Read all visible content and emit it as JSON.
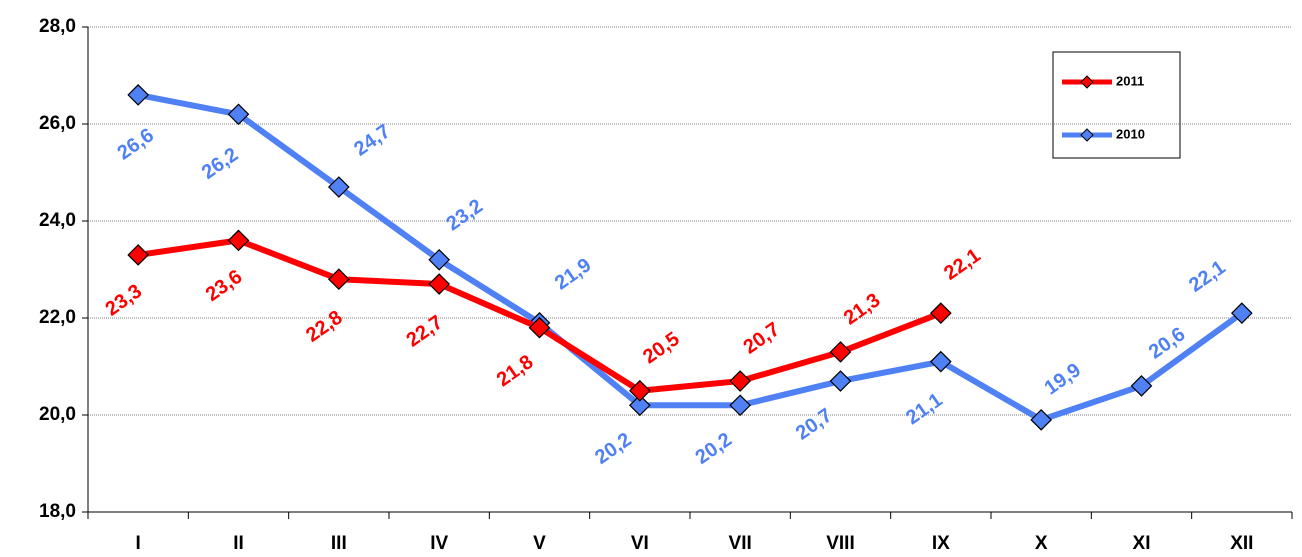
{
  "chart_data": {
    "type": "line",
    "categories": [
      "I",
      "II",
      "III",
      "IV",
      "V",
      "VI",
      "VII",
      "VIII",
      "IX",
      "X",
      "XI",
      "XII"
    ],
    "series": [
      {
        "name": "2011",
        "color": "#ff0000",
        "values": [
          23.3,
          23.6,
          22.8,
          22.7,
          21.8,
          20.5,
          20.7,
          21.3,
          22.1,
          null,
          null,
          null
        ],
        "value_labels": [
          "23,3",
          "23,6",
          "22,8",
          "22,7",
          "21,8",
          "20,5",
          "20,7",
          "21,3",
          "22,1",
          null,
          null,
          null
        ]
      },
      {
        "name": "2010",
        "color": "#4f81f5",
        "values": [
          26.6,
          26.2,
          24.7,
          23.2,
          21.9,
          20.2,
          20.2,
          20.7,
          21.1,
          19.9,
          20.6,
          22.1
        ],
        "value_labels": [
          "26,6",
          "26,2",
          "24,7",
          "23,2",
          "21,9",
          "20,2",
          "20,2",
          "20,7",
          "21,1",
          "19,9",
          "20,6",
          "22,1"
        ]
      }
    ],
    "ylim": [
      18,
      28
    ],
    "yticks": [
      {
        "value": 18,
        "label": "18,0"
      },
      {
        "value": 20,
        "label": "20,0"
      },
      {
        "value": 22,
        "label": "22,0"
      },
      {
        "value": 24,
        "label": "24,0"
      },
      {
        "value": 26,
        "label": "26,0"
      },
      {
        "value": 28,
        "label": "28,0"
      }
    ],
    "grid": true
  }
}
